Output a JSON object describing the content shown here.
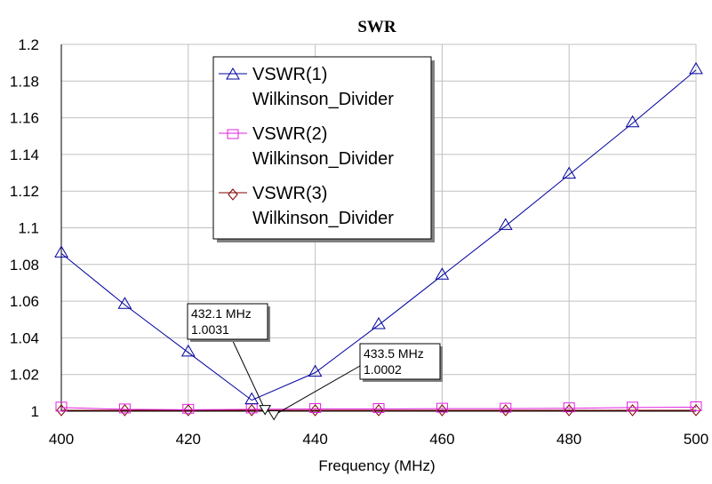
{
  "chart_data": {
    "type": "line",
    "title": "SWR",
    "xlabel": "Frequency (MHz)",
    "ylabel": "",
    "xlim": [
      400,
      500
    ],
    "ylim": [
      1,
      1.2
    ],
    "grid": true,
    "legend_position": "top-center",
    "x_ticks": [
      "400",
      "420",
      "440",
      "460",
      "480",
      "500"
    ],
    "y_ticks": [
      "1",
      "1.02",
      "1.04",
      "1.06",
      "1.08",
      "1.1",
      "1.12",
      "1.14",
      "1.16",
      "1.18",
      "1.2"
    ],
    "x": [
      400,
      410,
      420,
      430,
      440,
      450,
      460,
      470,
      480,
      490,
      500
    ],
    "series": [
      {
        "name": "VSWR(1)",
        "sub": "Wilkinson_Divider",
        "color": "#0000a0",
        "marker": "triangle",
        "values": [
          1.086,
          1.058,
          1.032,
          1.006,
          1.021,
          1.047,
          1.074,
          1.101,
          1.129,
          1.157,
          1.186
        ]
      },
      {
        "name": "VSWR(2)",
        "sub": "Wilkinson_Divider",
        "color": "#e020e0",
        "marker": "square",
        "values": [
          1.002,
          1.001,
          1.0008,
          1.001,
          1.0012,
          1.0012,
          1.0014,
          1.0014,
          1.0016,
          1.002,
          1.0022
        ]
      },
      {
        "name": "VSWR(3)",
        "sub": "Wilkinson_Divider",
        "color": "#800000",
        "marker": "diamond",
        "values": [
          1.0005,
          1.0005,
          1.0005,
          1.0005,
          1.0005,
          1.0005,
          1.0005,
          1.0005,
          1.0005,
          1.0005,
          1.0005
        ]
      }
    ],
    "annotations": [
      {
        "freq_label": "432.1 MHz",
        "value_label": "1.0031",
        "x": 432.1,
        "y": 1.0031
      },
      {
        "freq_label": "433.5 MHz",
        "value_label": "1.0002",
        "x": 433.5,
        "y": 1.0002
      }
    ]
  }
}
